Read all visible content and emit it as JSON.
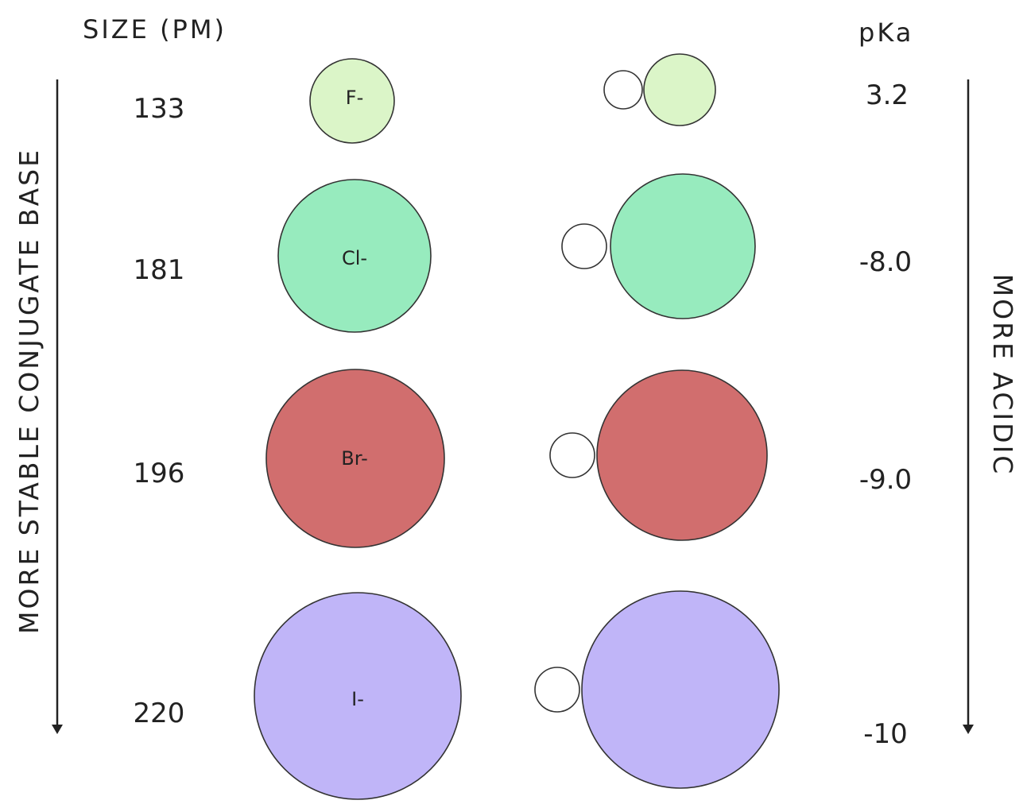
{
  "headers": {
    "size": "SIZE (PM)",
    "pka": "pKa"
  },
  "arrows": {
    "left_label": "MORE STABLE CONJUGATE BASE",
    "right_label": "MORE ACIDIC"
  },
  "rows": [
    {
      "ion_label": "F-",
      "size": "133",
      "pka": "3.2",
      "color": "#dbf5c8"
    },
    {
      "ion_label": "Cl-",
      "size": "181",
      "pka": "-8.0",
      "color": "#97ebbe"
    },
    {
      "ion_label": "Br-",
      "size": "196",
      "pka": "-9.0",
      "color": "#d16e6e"
    },
    {
      "ion_label": "I-",
      "size": "220",
      "pka": "-10",
      "color": "#c0b5f8"
    }
  ]
}
